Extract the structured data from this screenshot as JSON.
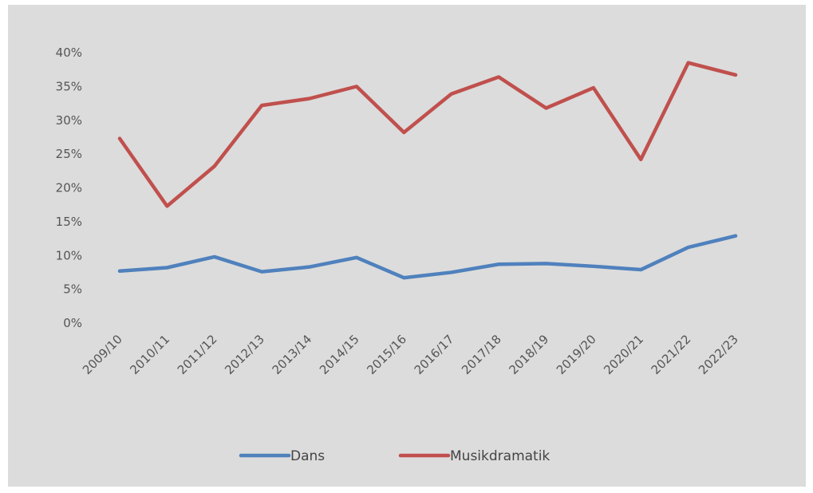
{
  "chart_data": {
    "type": "line",
    "title": "",
    "xlabel": "",
    "ylabel": "",
    "categories": [
      "2009/10",
      "2010/11",
      "2011/12",
      "2012/13",
      "2013/14",
      "2014/15",
      "2015/16",
      "2016/17",
      "2017/18",
      "2018/19",
      "2019/20",
      "2020/21",
      "2021/22",
      "2022/23"
    ],
    "ylim": [
      0,
      40
    ],
    "yticks": [
      "0%",
      "5%",
      "10%",
      "15%",
      "20%",
      "25%",
      "30%",
      "35%",
      "40%"
    ],
    "grid": false,
    "legend": "bottom",
    "series": [
      {
        "name": "Dans",
        "color": "#4f81bd",
        "values": [
          7.7,
          8.2,
          9.8,
          7.6,
          8.3,
          9.7,
          6.7,
          7.5,
          8.7,
          8.8,
          8.4,
          7.9,
          11.2,
          12.9
        ]
      },
      {
        "name": "Musikdramatik",
        "color": "#c0504d",
        "values": [
          27.3,
          17.3,
          23.2,
          32.2,
          33.2,
          35.0,
          28.2,
          33.9,
          36.4,
          31.8,
          34.8,
          24.2,
          38.5,
          36.7
        ]
      }
    ]
  }
}
